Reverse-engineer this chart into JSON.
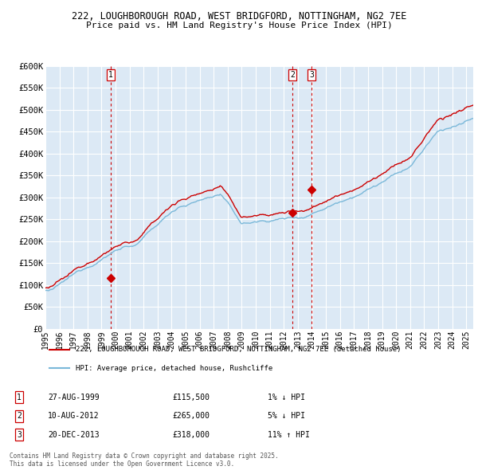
{
  "title_line1": "222, LOUGHBOROUGH ROAD, WEST BRIDGFORD, NOTTINGHAM, NG2 7EE",
  "title_line2": "Price paid vs. HM Land Registry's House Price Index (HPI)",
  "ylim": [
    0,
    600000
  ],
  "yticks": [
    0,
    50000,
    100000,
    150000,
    200000,
    250000,
    300000,
    350000,
    400000,
    450000,
    500000,
    550000,
    600000
  ],
  "ytick_labels": [
    "£0",
    "£50K",
    "£100K",
    "£150K",
    "£200K",
    "£250K",
    "£300K",
    "£350K",
    "£400K",
    "£450K",
    "£500K",
    "£550K",
    "£600K"
  ],
  "hpi_line_color": "#7ab8d9",
  "price_line_color": "#cc0000",
  "marker_color": "#cc0000",
  "bg_color": "#dce9f5",
  "grid_color": "#ffffff",
  "sale_markers": [
    {
      "date_num": 1999.65,
      "price": 115500,
      "label": "1"
    },
    {
      "date_num": 2012.6,
      "price": 265000,
      "label": "2"
    },
    {
      "date_num": 2013.97,
      "price": 318000,
      "label": "3"
    }
  ],
  "legend_line1": "222, LOUGHBOROUGH ROAD, WEST BRIDGFORD, NOTTINGHAM, NG2 7EE (detached house)",
  "legend_line2": "HPI: Average price, detached house, Rushcliffe",
  "table_rows": [
    [
      "1",
      "27-AUG-1999",
      "£115,500",
      "1% ↓ HPI"
    ],
    [
      "2",
      "10-AUG-2012",
      "£265,000",
      "5% ↓ HPI"
    ],
    [
      "3",
      "20-DEC-2013",
      "£318,000",
      "11% ↑ HPI"
    ]
  ],
  "footnote": "Contains HM Land Registry data © Crown copyright and database right 2025.\nThis data is licensed under the Open Government Licence v3.0.",
  "xmin": 1995.0,
  "xmax": 2025.5
}
